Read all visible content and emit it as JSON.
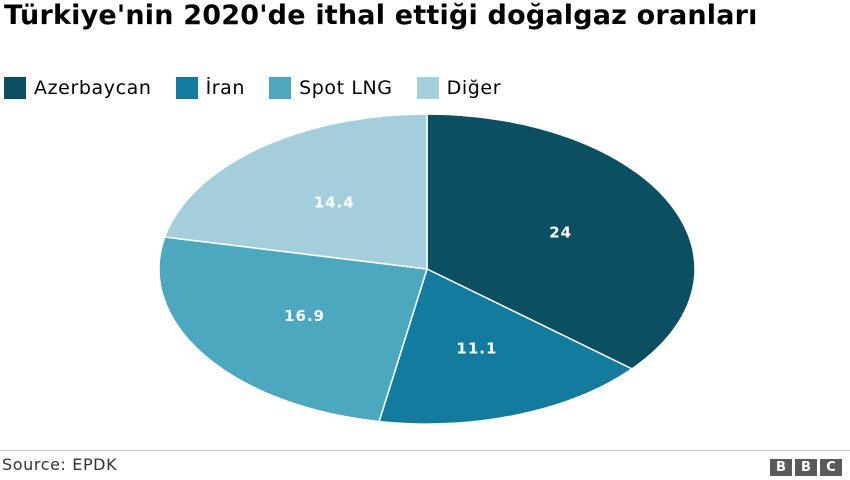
{
  "chart_data": {
    "type": "pie",
    "title": "Türkiye'nin 2020'de ithal ettiği doğalgaz oranları",
    "categories": [
      "Azerbaycan",
      "İran",
      "Spot LNG",
      "Diğer"
    ],
    "values": [
      24,
      11.1,
      16.9,
      14.4
    ],
    "value_labels": [
      "24",
      "11.1",
      "16.9",
      "14.4"
    ],
    "colors": [
      "#0d4f62",
      "#137c9e",
      "#4ba8bf",
      "#a4cedb"
    ],
    "legend_position": "top-left",
    "start_angle": "12 o'clock",
    "direction": "clockwise"
  },
  "footer": {
    "source": "Source: EPDK",
    "logo_text": "BBC"
  }
}
